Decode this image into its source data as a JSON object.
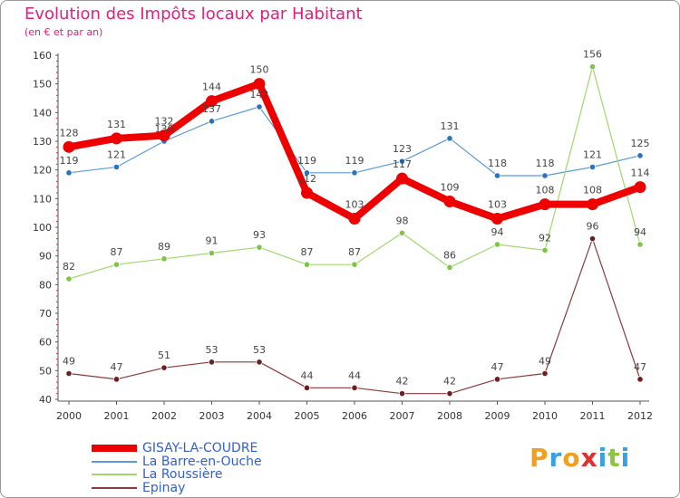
{
  "header": {
    "title": "Evolution des Impôts locaux par Habitant",
    "subtitle": "(en € et par an)"
  },
  "chart_data": {
    "type": "line",
    "title": "Evolution des Impôts locaux par Habitant",
    "subtitle": "(en € et par an)",
    "xlabel": "",
    "ylabel": "",
    "ylim": [
      40,
      160
    ],
    "yticks": [
      40,
      50,
      60,
      70,
      80,
      90,
      100,
      110,
      120,
      130,
      140,
      150,
      160
    ],
    "grid": false,
    "legend_position": "bottom-left",
    "categories": [
      "2000",
      "2001",
      "2002",
      "2003",
      "2004",
      "2005",
      "2006",
      "2007",
      "2008",
      "2009",
      "2010",
      "2011",
      "2012"
    ],
    "series": [
      {
        "name": "La Barre-en-Ouche",
        "color": "#5a9bd5",
        "marker": "#2a72c0",
        "values": [
          119,
          121,
          130,
          137,
          142,
          119,
          119,
          123,
          131,
          118,
          118,
          121,
          125
        ]
      },
      {
        "name": "La Roussière",
        "color": "#9ed86f",
        "marker": "#7cc644",
        "values": [
          82,
          87,
          89,
          91,
          93,
          87,
          87,
          98,
          86,
          94,
          92,
          156,
          94
        ]
      },
      {
        "name": "Epinay",
        "color": "#8b3a3a",
        "marker": "#6b1f1f",
        "values": [
          49,
          47,
          51,
          53,
          53,
          44,
          44,
          42,
          42,
          47,
          49,
          96,
          47
        ]
      },
      {
        "name": "GISAY-LA-COUDRE",
        "color": "#ee0000",
        "marker": "#ee0000",
        "values": [
          128,
          131,
          132,
          144,
          150,
          112,
          103,
          117,
          109,
          103,
          108,
          108,
          114
        ]
      }
    ]
  },
  "legend": [
    {
      "label": "GISAY-LA-COUDRE",
      "color": "#ee0000"
    },
    {
      "label": "La Barre-en-Ouche",
      "color": "#5a9bd5"
    },
    {
      "label": "La Roussière",
      "color": "#9ed86f"
    },
    {
      "label": "Epinay",
      "color": "#8b3a3a"
    }
  ],
  "logo": {
    "text": "Proxiti",
    "letters": [
      {
        "ch": "P",
        "color": "#f0a020"
      },
      {
        "ch": "r",
        "color": "#3aa0e0"
      },
      {
        "ch": "o",
        "color": "#f0a020"
      },
      {
        "ch": "x",
        "color": "#e03030"
      },
      {
        "ch": "i",
        "color": "#3aa0e0"
      },
      {
        "ch": "t",
        "color": "#8cc63f"
      },
      {
        "ch": "i",
        "color": "#3aa0e0"
      }
    ]
  }
}
